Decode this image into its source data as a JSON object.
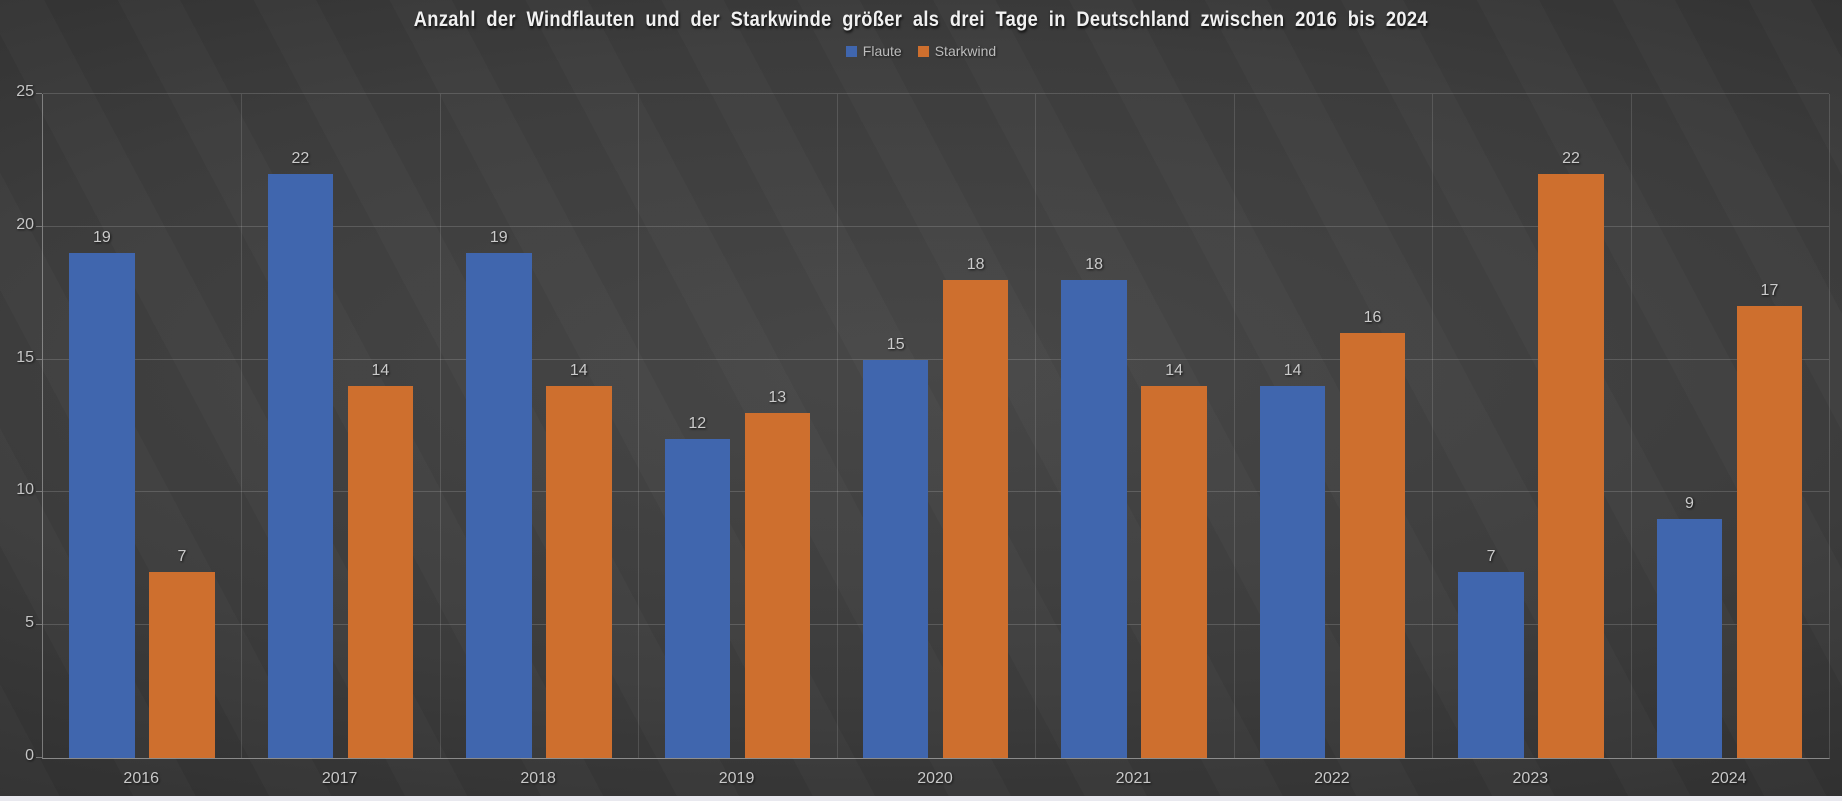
{
  "chart_data": {
    "type": "bar",
    "title": "Anzahl der Windflauten und der Starkwinde größer als drei Tage in Deutschland zwischen 2016 bis 2024",
    "categories": [
      "2016",
      "2017",
      "2018",
      "2019",
      "2020",
      "2021",
      "2022",
      "2023",
      "2024"
    ],
    "series": [
      {
        "name": "Flaute",
        "color": "#4066AE",
        "values": [
          19,
          22,
          19,
          12,
          15,
          18,
          14,
          7,
          9
        ]
      },
      {
        "name": "Starkwind",
        "color": "#CE6F2E",
        "values": [
          7,
          14,
          14,
          13,
          18,
          14,
          16,
          22,
          17
        ]
      }
    ],
    "xlabel": "",
    "ylabel": "",
    "ylim": [
      0,
      25
    ],
    "yticks": [
      0,
      5,
      10,
      15,
      20,
      25
    ],
    "grid": {
      "horizontal": true,
      "vertical_category_separators": true
    },
    "legend_position": "top-center",
    "value_labels": "above bars",
    "colors": {
      "background_center": "#474747",
      "background_edge": "#262626",
      "gridline": "rgba(255,255,255,0.15)",
      "axis_line": "rgba(255,255,255,0.40)",
      "tick_label": "#c5c5c5",
      "value_label": "#cbcbcb",
      "title_text": "#f1f1f1",
      "legend_text": "#bdbdbd"
    }
  }
}
